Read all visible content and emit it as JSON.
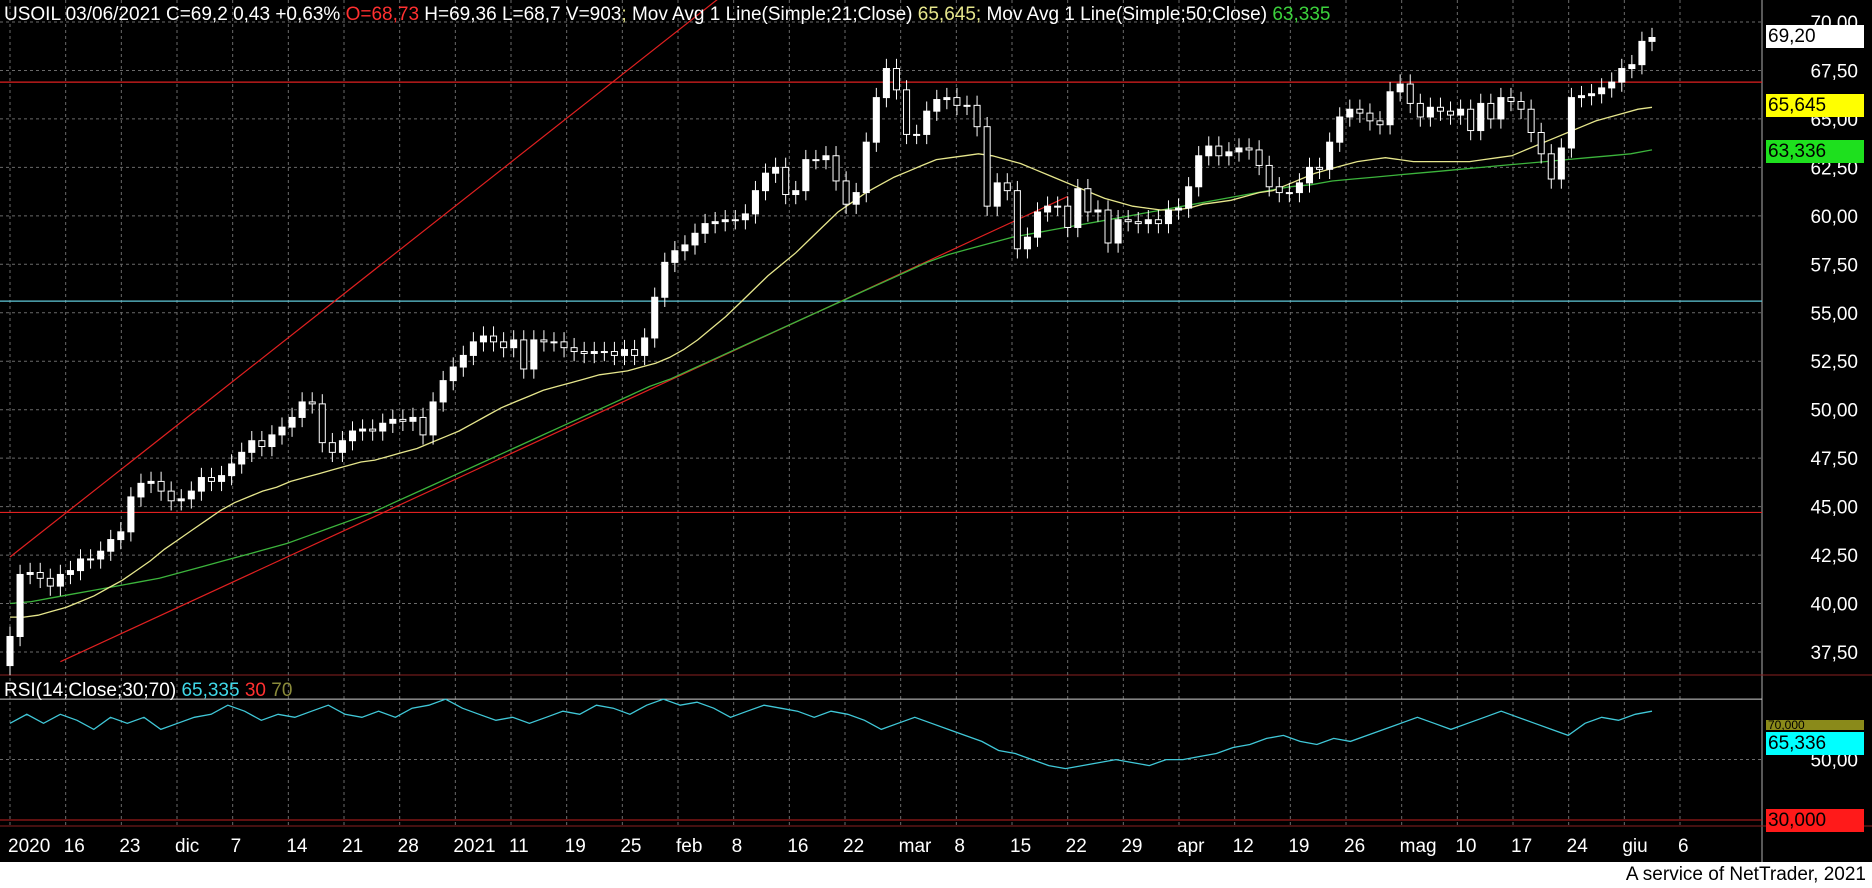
{
  "header": {
    "symbol": "USOIL",
    "date": "03/06/2021",
    "close": "C=69,2",
    "change": "0,43",
    "change_pct": "+0,63%",
    "open": "O=68,73",
    "high": "H=69,36",
    "low": "L=68,7",
    "volume": "V=903",
    "ma1_label": "Mov Avg 1 Line(Simple;21;Close)",
    "ma1_value": "65,645",
    "ma2_label": "Mov Avg 1 Line(Simple;50;Close)",
    "ma2_value": "63,335"
  },
  "rsi_header": {
    "label": "RSI(14;Close;30;70)",
    "value": "65,335",
    "low": "30",
    "high": "70"
  },
  "tags": {
    "last_price": "69,20",
    "ma21": "65,645",
    "ma50": "63,336",
    "rsi_value": "65,336",
    "rsi_high": "70,000",
    "rsi_low": "30,000"
  },
  "footer": "A service of NetTrader, 2021",
  "colors": {
    "background": "#000000",
    "candle_up": "#ffffff",
    "ma21": "#e6e68c",
    "ma50": "#3cb43c",
    "channel": "#e02020",
    "support": "#e02020",
    "horizontal_cyan": "#5fc8d8",
    "rsi_line": "#40c8d8",
    "grid": "#6a6a6a"
  },
  "chart_data": {
    "type": "candlestick",
    "y_ticks": [
      "70,00",
      "67,50",
      "65,00",
      "62,50",
      "60,00",
      "57,50",
      "55,00",
      "52,50",
      "50,00",
      "47,50",
      "45,00",
      "42,50",
      "40,00",
      "37,50"
    ],
    "y_range": [
      36.8,
      71.0
    ],
    "rsi_y_ticks": [
      "70,000",
      "50,00"
    ],
    "rsi_range": [
      28,
      78
    ],
    "x_labels": [
      "2020",
      "16",
      "23",
      "dic",
      "7",
      "14",
      "21",
      "28",
      "2021",
      "11",
      "19",
      "25",
      "feb",
      "8",
      "16",
      "22",
      "mar",
      "8",
      "15",
      "22",
      "29",
      "apr",
      "12",
      "19",
      "26",
      "mag",
      "10",
      "17",
      "24",
      "giu",
      "6"
    ],
    "horizontal_levels": {
      "resistance": 66.9,
      "support": 55.6,
      "lower": 44.7
    },
    "closes": [
      38.3,
      41.5,
      41.6,
      41.3,
      40.9,
      41.5,
      41.7,
      42.3,
      42.3,
      42.7,
      43.3,
      43.7,
      45.5,
      46.2,
      46.3,
      45.8,
      45.3,
      45.4,
      45.8,
      46.5,
      46.3,
      46.6,
      47.2,
      47.8,
      48.4,
      48.1,
      48.7,
      49.1,
      49.6,
      50.4,
      50.3,
      48.3,
      47.8,
      48.4,
      48.9,
      49.0,
      48.9,
      49.3,
      49.5,
      49.4,
      49.6,
      48.7,
      50.4,
      51.5,
      52.2,
      52.8,
      53.5,
      53.8,
      53.5,
      53.2,
      53.6,
      52.1,
      53.6,
      53.5,
      53.5,
      53.2,
      53.0,
      52.9,
      53.0,
      53.0,
      52.8,
      53.1,
      52.8,
      53.7,
      55.8,
      57.6,
      58.2,
      58.5,
      59.1,
      59.6,
      59.7,
      59.8,
      59.8,
      60.1,
      61.3,
      62.2,
      62.5,
      61.1,
      61.3,
      62.9,
      62.9,
      63.1,
      61.8,
      60.6,
      61.2,
      63.8,
      66.1,
      67.6,
      66.5,
      64.2,
      64.2,
      65.4,
      66.0,
      66.1,
      65.7,
      65.7,
      64.6,
      60.5,
      61.7,
      61.3,
      58.3,
      58.9,
      60.2,
      60.5,
      60.5,
      59.4,
      61.4,
      60.2,
      60.3,
      58.6,
      59.8,
      59.7,
      59.6,
      59.8,
      59.6,
      60.3,
      60.4,
      61.5,
      63.1,
      63.6,
      63.1,
      63.3,
      63.5,
      63.4,
      62.6,
      61.5,
      61.2,
      61.2,
      61.7,
      62.5,
      62.4,
      63.8,
      65.1,
      65.5,
      65.3,
      64.9,
      64.7,
      66.4,
      66.8,
      65.8,
      65.1,
      65.6,
      65.4,
      65.2,
      65.5,
      64.4,
      65.8,
      65.0,
      66.1,
      65.9,
      65.5,
      64.3,
      63.2,
      61.9,
      63.5,
      66.1,
      66.2,
      66.3,
      66.6,
      66.9,
      67.6,
      67.8,
      69.0,
      69.2
    ],
    "ma21": [
      39.3,
      39.3,
      39.4,
      39.6,
      39.8,
      40.1,
      40.4,
      40.8,
      41.2,
      41.7,
      42.2,
      42.8,
      43.3,
      43.8,
      44.3,
      44.8,
      45.2,
      45.5,
      45.8,
      46.0,
      46.3,
      46.5,
      46.7,
      46.9,
      47.1,
      47.3,
      47.4,
      47.6,
      47.8,
      48.0,
      48.3,
      48.6,
      48.9,
      49.3,
      49.7,
      50.1,
      50.4,
      50.7,
      51.0,
      51.2,
      51.4,
      51.6,
      51.8,
      51.9,
      52.0,
      52.2,
      52.4,
      52.7,
      53.1,
      53.6,
      54.2,
      54.8,
      55.5,
      56.2,
      56.9,
      57.5,
      58.1,
      58.8,
      59.5,
      60.2,
      60.7,
      61.2,
      61.6,
      62.0,
      62.3,
      62.6,
      62.9,
      63.0,
      63.1,
      63.2,
      63.1,
      62.9,
      62.7,
      62.4,
      62.1,
      61.8,
      61.5,
      61.2,
      60.9,
      60.7,
      60.5,
      60.4,
      60.3,
      60.3,
      60.4,
      60.6,
      60.7,
      60.8,
      61.0,
      61.2,
      61.3,
      61.6,
      61.9,
      62.2,
      62.4,
      62.6,
      62.8,
      62.9,
      63.0,
      62.9,
      62.8,
      62.8,
      62.8,
      62.8,
      62.8,
      62.9,
      63.0,
      63.1,
      63.4,
      63.7,
      64.0,
      64.3,
      64.6,
      64.9,
      65.1,
      65.3,
      65.5,
      65.6
    ],
    "ma50": [
      40.0,
      40.1,
      40.3,
      40.5,
      40.7,
      40.9,
      41.1,
      41.3,
      41.6,
      41.9,
      42.2,
      42.5,
      42.8,
      43.1,
      43.5,
      43.9,
      44.3,
      44.7,
      45.2,
      45.7,
      46.2,
      46.7,
      47.2,
      47.7,
      48.2,
      48.7,
      49.2,
      49.7,
      50.2,
      50.7,
      51.2,
      51.6,
      52.1,
      52.6,
      53.1,
      53.6,
      54.1,
      54.6,
      55.1,
      55.6,
      56.1,
      56.6,
      57.1,
      57.6,
      58.0,
      58.3,
      58.6,
      58.9,
      59.1,
      59.3,
      59.5,
      59.7,
      59.9,
      60.1,
      60.3,
      60.5,
      60.7,
      60.9,
      61.1,
      61.3,
      61.5,
      61.6,
      61.8,
      61.9,
      62.0,
      62.1,
      62.2,
      62.3,
      62.4,
      62.5,
      62.6,
      62.7,
      62.8,
      62.9,
      63.0,
      63.1,
      63.2,
      63.4
    ],
    "rsi": [
      62,
      65,
      62,
      65,
      63,
      60,
      64,
      62,
      64,
      60,
      62,
      64,
      65,
      68,
      66,
      63,
      65,
      64,
      66,
      68,
      65,
      64,
      66,
      64,
      67,
      68,
      70,
      67,
      65,
      63,
      64,
      62,
      64,
      66,
      65,
      68,
      67,
      65,
      68,
      70,
      68,
      69,
      67,
      64,
      66,
      68,
      67,
      66,
      64,
      66,
      65,
      63,
      60,
      62,
      64,
      62,
      60,
      58,
      56,
      53,
      52,
      50,
      48,
      47,
      48,
      49,
      50,
      49,
      48,
      50,
      50,
      51,
      52,
      54,
      55,
      57,
      58,
      56,
      55,
      57,
      56,
      58,
      60,
      62,
      64,
      62,
      60,
      62,
      64,
      66,
      64,
      62,
      60,
      58,
      62,
      64,
      63,
      65,
      66
    ]
  }
}
